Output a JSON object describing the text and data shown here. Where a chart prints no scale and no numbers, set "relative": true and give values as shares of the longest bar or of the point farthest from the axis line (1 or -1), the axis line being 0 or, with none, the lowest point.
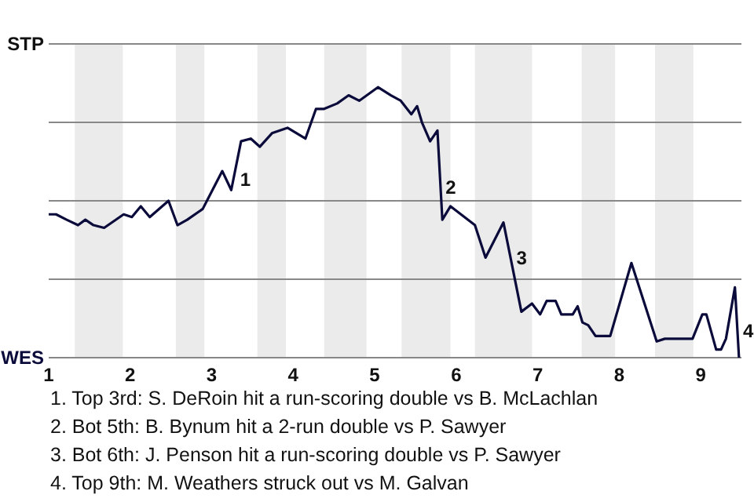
{
  "chart_data": {
    "type": "line",
    "relative": true,
    "x": [
      1,
      1.09,
      1.22,
      1.36,
      1.45,
      1.55,
      1.68,
      1.92,
      2.02,
      2.13,
      2.24,
      2.47,
      2.58,
      2.7,
      2.89,
      3.13,
      3.24,
      3.36,
      3.48,
      3.59,
      3.74,
      3.93,
      4.15,
      4.28,
      4.38,
      4.54,
      4.68,
      4.81,
      5.04,
      5.2,
      5.32,
      5.45,
      5.52,
      5.58,
      5.68,
      5.77,
      5.83,
      5.93,
      6.23,
      6.36,
      6.58,
      6.8,
      6.93,
      7.03,
      7.11,
      7.22,
      7.29,
      7.43,
      7.49,
      7.55,
      7.62,
      7.71,
      7.75,
      7.89,
      8.15,
      8.46,
      8.56,
      8.9,
      9.02,
      9.07,
      9.19,
      9.25,
      9.31,
      9.42,
      9.43,
      9.47
    ],
    "series": [
      {
        "color": "#0b0b3b",
        "values": [
          0.53,
          0.53,
          0.51,
          0.49,
          0.51,
          0.49,
          0.48,
          0.53,
          0.52,
          0.56,
          0.52,
          0.58,
          0.49,
          0.51,
          0.55,
          0.69,
          0.62,
          0.8,
          0.81,
          0.78,
          0.83,
          0.85,
          0.81,
          0.92,
          0.92,
          0.94,
          0.97,
          0.95,
          1,
          0.97,
          0.95,
          0.9,
          0.93,
          0.87,
          0.8,
          0.84,
          0.51,
          0.56,
          0.49,
          0.37,
          0.5,
          0.17,
          0.2,
          0.16,
          0.21,
          0.21,
          0.16,
          0.16,
          0.19,
          0.13,
          0.12,
          0.08,
          0.08,
          0.08,
          0.35,
          0.06,
          0.07,
          0.07,
          0.16,
          0.16,
          0.03,
          0.03,
          0.07,
          0.26,
          0.21,
          0
        ]
      }
    ],
    "xlim": [
      1,
      9.5
    ],
    "xticks": [
      1,
      2,
      3,
      4,
      5,
      6,
      7,
      8,
      9
    ],
    "grid": "y",
    "marker": "none",
    "bands": [
      {
        "axis": "x",
        "from": 1.32,
        "to": 1.91,
        "color": "#ebebeb"
      },
      {
        "axis": "x",
        "from": 2.56,
        "to": 2.91,
        "color": "#ebebeb"
      },
      {
        "axis": "x",
        "from": 3.56,
        "to": 3.91,
        "color": "#ebebeb"
      },
      {
        "axis": "x",
        "from": 4.38,
        "to": 4.9,
        "color": "#ebebeb"
      },
      {
        "axis": "x",
        "from": 5.33,
        "to": 5.93,
        "color": "#ebebeb"
      },
      {
        "axis": "x",
        "from": 6.23,
        "to": 6.93,
        "color": "#ebebeb"
      },
      {
        "axis": "x",
        "from": 7.54,
        "to": 7.95,
        "color": "#ebebeb"
      },
      {
        "axis": "x",
        "from": 8.44,
        "to": 8.91,
        "color": "#ebebeb"
      }
    ],
    "annotations": [
      "STP",
      "WES",
      {
        "text": "1",
        "x": 3.33,
        "y": 0.66
      },
      {
        "text": "2",
        "x": 5.85,
        "y": 0.63
      },
      {
        "text": "3",
        "x": 6.72,
        "y": 0.37
      },
      {
        "text": "4",
        "x": 9.5,
        "y": 0.1
      },
      "1. Top 3rd: S. DeRoin hit a run-scoring double vs B. McLachlan",
      "2. Bot 5th: B. Bynum hit a 2-run double vs P. Sawyer",
      "3. Bot 6th: J. Penson hit a run-scoring double vs P. Sawyer",
      "4. Top 9th: M. Weathers struck out vs M. Galvan"
    ]
  }
}
